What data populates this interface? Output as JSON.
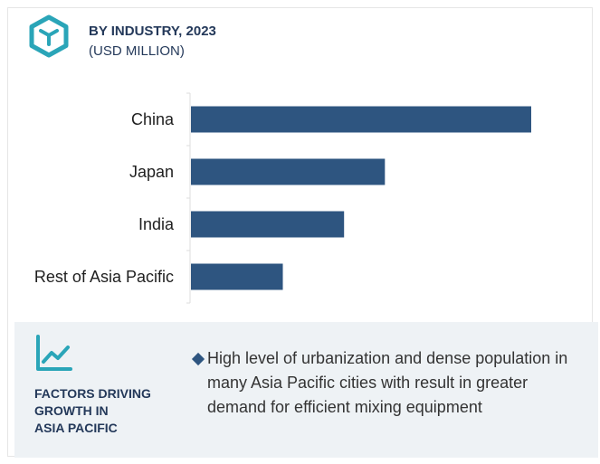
{
  "header": {
    "title": "BY INDUSTRY, 2023",
    "subtitle": "(USD MILLION)",
    "icon": "cube-icon"
  },
  "colors": {
    "bar": "#2e5580",
    "accent": "#24395a",
    "icon": "#2aa5b8",
    "panel_bg": "#eef2f5"
  },
  "chart_data": {
    "type": "bar",
    "orientation": "horizontal",
    "categories": [
      "China",
      "Japan",
      "India",
      "Rest of Asia Pacific"
    ],
    "values": [
      100,
      57,
      45,
      27
    ],
    "xlim": [
      0,
      100
    ],
    "grid": false,
    "legend": "none"
  },
  "factors": {
    "icon": "trend-line-icon",
    "heading_lines": [
      "FACTORS DRIVING",
      "GROWTH IN",
      "ASIA PACIFIC"
    ],
    "bullet": "High level of urbanization and dense population in many Asia Pacific cities with result in greater demand for efficient mixing equipment"
  }
}
